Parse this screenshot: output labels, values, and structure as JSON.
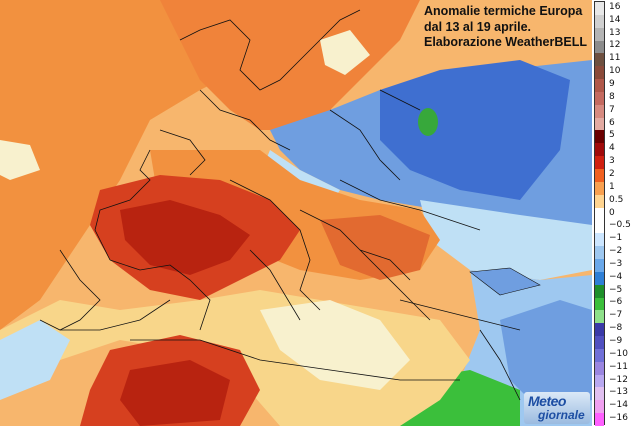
{
  "title": {
    "line1": "Anomalie termiche Europa",
    "line2": "dal 13 al 19 aprile.",
    "line3": "Elaborazione WeatherBELL"
  },
  "logo": {
    "line1": "Meteo",
    "line2": "giornale"
  },
  "legend": {
    "ticks": [
      "16",
      "14",
      "13",
      "12",
      "11",
      "10",
      "9",
      "8",
      "7",
      "6",
      "5",
      "4",
      "3",
      "2",
      "1",
      "0.5",
      "0",
      "−0.5",
      "−1",
      "−2",
      "−3",
      "−4",
      "−5",
      "−6",
      "−7",
      "−8",
      "−9",
      "−10",
      "−11",
      "−12",
      "−13",
      "−14",
      "−16"
    ],
    "colors": [
      "#e8e8e8",
      "#d0d0d0",
      "#b4b4b4",
      "#8c8c8c",
      "#6e5040",
      "#8a4a3a",
      "#b0584a",
      "#c46a60",
      "#d68a80",
      "#e2aaa2",
      "#6a0000",
      "#a00a0a",
      "#d02010",
      "#f06020",
      "#f8a050",
      "#ffd490",
      "#ffffff",
      "#ffffff",
      "#cce6ff",
      "#9ec8f0",
      "#6aa8ea",
      "#2f7fd6",
      "#1e8f2a",
      "#3bbf3b",
      "#8ee08a",
      "#3a3aa8",
      "#5050c0",
      "#7070d8",
      "#9a86e0",
      "#b8a8f0",
      "#e0c0f0",
      "#f0a0f0",
      "#ff60ff"
    ]
  },
  "colors": {
    "sea_warm": "#f7b66d",
    "warm": "#f2913f",
    "hot": "#d6401f",
    "very_hot": "#b82310",
    "mild": "#f8d68a",
    "neutral": "#f8f1ce",
    "cool": "#bfe0f5",
    "cold": "#6f9ee0",
    "colder": "#3f6fd0",
    "green": "#37a83b",
    "border": "#111111"
  }
}
